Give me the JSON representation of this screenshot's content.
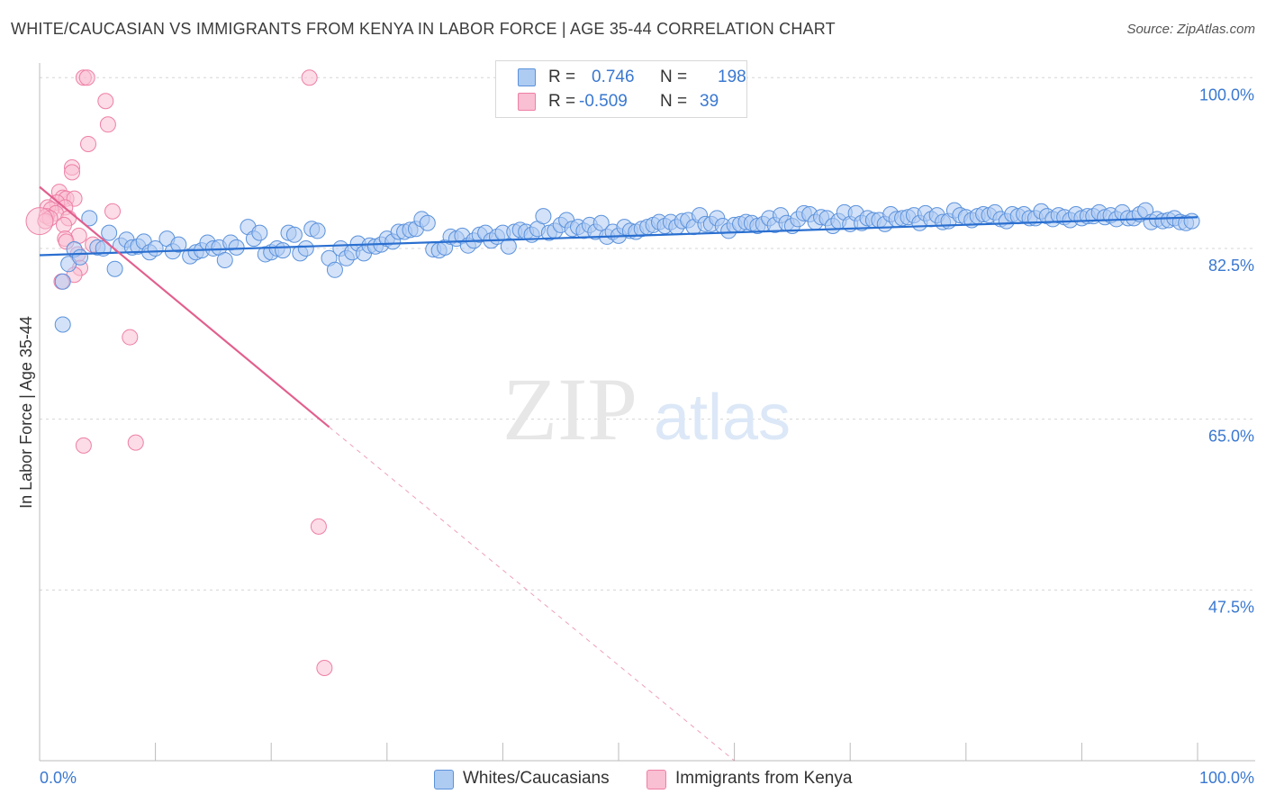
{
  "title": "WHITE/CAUCASIAN VS IMMIGRANTS FROM KENYA IN LABOR FORCE | AGE 35-44 CORRELATION CHART",
  "source": "Source: ZipAtlas.com",
  "watermark": {
    "zip": "ZIP",
    "atlas": "atlas"
  },
  "legend": {
    "rows": [
      {
        "r_label": "R =",
        "r_value": "0.746",
        "n_label": "N =",
        "n_value": "198"
      },
      {
        "r_label": "R =",
        "r_value": "-0.509",
        "n_label": "N =",
        "n_value": "39"
      }
    ]
  },
  "colors": {
    "blue_fill": "#aecbf2",
    "blue_stroke": "#5b92dc",
    "blue_line": "#2a6fd0",
    "pink_fill": "#f9bfd2",
    "pink_stroke": "#ee7fa6",
    "pink_line": "#e25f8e",
    "axis_text": "#3a78d0",
    "grid": "#d5d5d5"
  },
  "chart_data": {
    "type": "scatter",
    "title": "WHITE/CAUCASIAN VS IMMIGRANTS FROM KENYA IN LABOR FORCE | AGE 35-44 CORRELATION CHART",
    "ylabel": "In Labor Force | Age 35-44",
    "xlabel": "",
    "xlim": [
      0,
      100
    ],
    "ylim": [
      30,
      101.5
    ],
    "x_tick_labels": [
      "0.0%",
      "100.0%"
    ],
    "y_ticks": [
      {
        "value": 100.0,
        "label": "100.0%"
      },
      {
        "value": 82.5,
        "label": "82.5%"
      },
      {
        "value": 65.0,
        "label": "65.0%"
      },
      {
        "value": 47.5,
        "label": "47.5%"
      }
    ],
    "legend_position": "top-center",
    "series": [
      {
        "name": "Whites/Caucasians",
        "R": 0.746,
        "N": 198,
        "trend": {
          "x0": 0,
          "y0": 81.8,
          "x1": 100,
          "y1": 85.7
        },
        "points": [
          [
            2,
            74.7
          ],
          [
            2,
            79.1
          ],
          [
            2.5,
            80.9
          ],
          [
            3,
            82.4
          ],
          [
            3.5,
            81.6
          ],
          [
            4.3,
            85.6
          ],
          [
            5,
            82.6
          ],
          [
            5.5,
            82.5
          ],
          [
            6,
            84.1
          ],
          [
            6.5,
            80.4
          ],
          [
            7,
            82.8
          ],
          [
            7.5,
            83.4
          ],
          [
            8,
            82.6
          ],
          [
            8.5,
            82.7
          ],
          [
            9,
            83.2
          ],
          [
            9.5,
            82.1
          ],
          [
            10,
            82.5
          ],
          [
            11,
            83.5
          ],
          [
            11.5,
            82.2
          ],
          [
            12,
            82.9
          ],
          [
            13,
            81.7
          ],
          [
            13.5,
            82.1
          ],
          [
            14,
            82.3
          ],
          [
            14.5,
            83.1
          ],
          [
            15,
            82.5
          ],
          [
            15.5,
            82.6
          ],
          [
            16,
            81.3
          ],
          [
            16.5,
            83.1
          ],
          [
            17,
            82.6
          ],
          [
            18,
            84.7
          ],
          [
            18.5,
            83.5
          ],
          [
            19,
            84.1
          ],
          [
            19.5,
            81.9
          ],
          [
            20,
            82.1
          ],
          [
            20.5,
            82.5
          ],
          [
            21,
            82.3
          ],
          [
            21.5,
            84.1
          ],
          [
            22,
            83.9
          ],
          [
            22.5,
            82.0
          ],
          [
            23,
            82.5
          ],
          [
            23.5,
            84.5
          ],
          [
            24,
            84.3
          ],
          [
            25,
            81.5
          ],
          [
            25.5,
            80.3
          ],
          [
            26,
            82.5
          ],
          [
            26.5,
            81.5
          ],
          [
            27,
            82.1
          ],
          [
            27.5,
            83.0
          ],
          [
            28,
            82.0
          ],
          [
            28.5,
            82.8
          ],
          [
            29,
            82.7
          ],
          [
            29.5,
            82.9
          ],
          [
            30,
            83.5
          ],
          [
            30.5,
            83.2
          ],
          [
            31,
            84.2
          ],
          [
            31.5,
            84.2
          ],
          [
            32,
            84.4
          ],
          [
            32.5,
            84.5
          ],
          [
            33,
            85.5
          ],
          [
            33.5,
            85.1
          ],
          [
            34,
            82.4
          ],
          [
            34.5,
            82.3
          ],
          [
            35,
            82.6
          ],
          [
            35.5,
            83.7
          ],
          [
            36,
            83.5
          ],
          [
            36.5,
            83.8
          ],
          [
            37,
            82.8
          ],
          [
            37.5,
            83.3
          ],
          [
            38,
            83.9
          ],
          [
            38.5,
            84.1
          ],
          [
            39,
            83.3
          ],
          [
            39.5,
            83.7
          ],
          [
            40,
            84.1
          ],
          [
            40.5,
            82.7
          ],
          [
            41,
            84.2
          ],
          [
            41.5,
            84.4
          ],
          [
            42,
            84.2
          ],
          [
            42.5,
            83.9
          ],
          [
            43,
            84.5
          ],
          [
            43.5,
            85.8
          ],
          [
            44,
            84.1
          ],
          [
            44.5,
            84.3
          ],
          [
            45,
            84.9
          ],
          [
            45.5,
            85.4
          ],
          [
            46,
            84.5
          ],
          [
            46.5,
            84.7
          ],
          [
            47,
            84.3
          ],
          [
            47.5,
            84.9
          ],
          [
            48,
            84.2
          ],
          [
            48.5,
            85.1
          ],
          [
            49,
            83.7
          ],
          [
            49.5,
            84.2
          ],
          [
            50,
            83.8
          ],
          [
            50.5,
            84.7
          ],
          [
            51,
            84.3
          ],
          [
            51.5,
            84.2
          ],
          [
            52,
            84.5
          ],
          [
            52.5,
            84.7
          ],
          [
            53,
            84.9
          ],
          [
            53.5,
            85.2
          ],
          [
            54,
            84.8
          ],
          [
            54.5,
            85.2
          ],
          [
            55,
            84.7
          ],
          [
            55.5,
            85.3
          ],
          [
            56,
            85.4
          ],
          [
            56.5,
            84.7
          ],
          [
            57,
            85.9
          ],
          [
            57.5,
            85.0
          ],
          [
            58,
            85.0
          ],
          [
            58.5,
            85.6
          ],
          [
            59,
            84.8
          ],
          [
            59.5,
            84.3
          ],
          [
            60,
            84.9
          ],
          [
            60.5,
            85.0
          ],
          [
            61,
            85.2
          ],
          [
            61.5,
            85.1
          ],
          [
            62,
            84.8
          ],
          [
            62.5,
            85.0
          ],
          [
            63,
            85.6
          ],
          [
            63.5,
            84.9
          ],
          [
            64,
            85.9
          ],
          [
            64.5,
            85.1
          ],
          [
            65,
            84.8
          ],
          [
            65.5,
            85.5
          ],
          [
            66,
            86.1
          ],
          [
            66.5,
            86.0
          ],
          [
            67,
            85.2
          ],
          [
            67.5,
            85.7
          ],
          [
            68,
            85.6
          ],
          [
            68.5,
            84.8
          ],
          [
            69,
            85.3
          ],
          [
            69.5,
            86.2
          ],
          [
            70,
            85.0
          ],
          [
            70.5,
            86.1
          ],
          [
            71,
            85.1
          ],
          [
            71.5,
            85.6
          ],
          [
            72,
            85.4
          ],
          [
            72.5,
            85.4
          ],
          [
            73,
            85.0
          ],
          [
            73.5,
            86.0
          ],
          [
            74,
            85.5
          ],
          [
            74.5,
            85.6
          ],
          [
            75,
            85.7
          ],
          [
            75.5,
            85.9
          ],
          [
            76,
            85.1
          ],
          [
            76.5,
            86.1
          ],
          [
            77,
            85.5
          ],
          [
            77.5,
            85.9
          ],
          [
            78,
            85.2
          ],
          [
            78.5,
            85.3
          ],
          [
            79,
            86.4
          ],
          [
            79.5,
            85.9
          ],
          [
            80,
            85.7
          ],
          [
            80.5,
            85.4
          ],
          [
            81,
            85.8
          ],
          [
            81.5,
            86.0
          ],
          [
            82,
            85.9
          ],
          [
            82.5,
            86.2
          ],
          [
            83,
            85.5
          ],
          [
            83.5,
            85.3
          ],
          [
            84,
            86.0
          ],
          [
            84.5,
            85.8
          ],
          [
            85,
            86.0
          ],
          [
            85.5,
            85.6
          ],
          [
            86,
            85.6
          ],
          [
            86.5,
            86.3
          ],
          [
            87,
            85.8
          ],
          [
            87.5,
            85.5
          ],
          [
            88,
            85.9
          ],
          [
            88.5,
            85.7
          ],
          [
            89,
            85.4
          ],
          [
            89.5,
            86.0
          ],
          [
            90,
            85.6
          ],
          [
            90.5,
            85.8
          ],
          [
            91,
            85.8
          ],
          [
            91.5,
            86.2
          ],
          [
            92,
            85.7
          ],
          [
            92.5,
            85.9
          ],
          [
            93,
            85.5
          ],
          [
            93.5,
            86.2
          ],
          [
            94,
            85.6
          ],
          [
            94.5,
            85.6
          ],
          [
            95,
            86.0
          ],
          [
            95.5,
            86.4
          ],
          [
            96,
            85.2
          ],
          [
            96.5,
            85.5
          ],
          [
            97,
            85.3
          ],
          [
            97.5,
            85.4
          ],
          [
            98,
            85.6
          ],
          [
            98.5,
            85.2
          ],
          [
            99,
            85.1
          ],
          [
            99.5,
            85.3
          ]
        ]
      },
      {
        "name": "Immigrants from Kenya",
        "R": -0.509,
        "N": 39,
        "trend": {
          "x0": 0,
          "y0": 88.8,
          "x1": 25,
          "y1": 64.2
        },
        "trend_dashed": {
          "x0": 25,
          "y0": 64.2,
          "x1": 60,
          "y1": 30
        },
        "points": [
          [
            3.8,
            100
          ],
          [
            4.1,
            100
          ],
          [
            23.3,
            100
          ],
          [
            5.7,
            97.6
          ],
          [
            5.9,
            95.2
          ],
          [
            4.2,
            93.2
          ],
          [
            2.8,
            90.8
          ],
          [
            2.8,
            90.3
          ],
          [
            1.7,
            88.3
          ],
          [
            2.0,
            87.7
          ],
          [
            2.3,
            87.6
          ],
          [
            3.0,
            87.6
          ],
          [
            1.5,
            87.2
          ],
          [
            2.2,
            86.7
          ],
          [
            0.7,
            86.7
          ],
          [
            1.0,
            86.5
          ],
          [
            6.3,
            86.3
          ],
          [
            1.4,
            86.1
          ],
          [
            0.6,
            85.8
          ],
          [
            0.9,
            85.6
          ],
          [
            2.5,
            85.6
          ],
          [
            0.5,
            85.3
          ],
          [
            2.1,
            84.9
          ],
          [
            3.4,
            83.8
          ],
          [
            2.2,
            83.5
          ],
          [
            2.3,
            83.2
          ],
          [
            4.6,
            82.9
          ],
          [
            3.3,
            81.9
          ],
          [
            3.5,
            80.5
          ],
          [
            3.0,
            79.8
          ],
          [
            1.9,
            79.1
          ],
          [
            7.8,
            73.4
          ],
          [
            3.8,
            62.3
          ],
          [
            8.3,
            62.6
          ],
          [
            24.1,
            54.0
          ],
          [
            24.6,
            39.5
          ]
        ]
      }
    ]
  }
}
